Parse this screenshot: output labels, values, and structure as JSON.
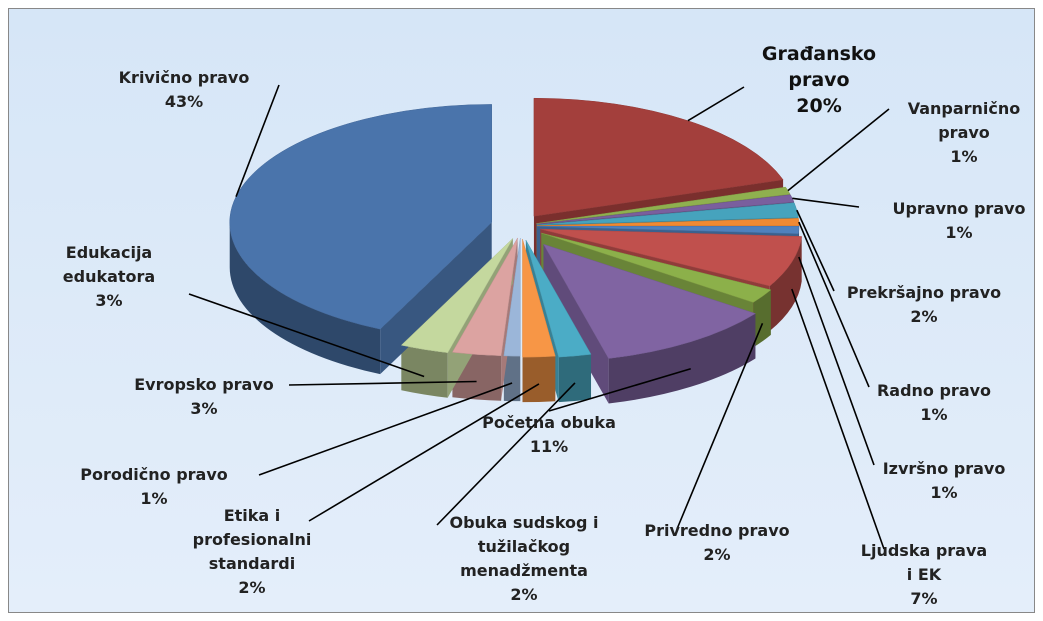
{
  "chart_data": {
    "type": "pie3d",
    "categories": [
      "Građansko pravo",
      "Vanparnično pravo",
      "Upravno pravo",
      "Prekršajno pravo",
      "Radno pravo",
      "Izvršno pravo",
      "Ljudska prava i EK",
      "Privredno pravo",
      "Početna obuka",
      "Obuka sudskog i tužilačkog menadžmenta",
      "Etika i profesionalni standardi",
      "Porodično pravo",
      "Evropsko pravo",
      "Edukacija edukatora",
      "Krivično pravo"
    ],
    "values": [
      20,
      1,
      1,
      2,
      1,
      1,
      7,
      2,
      11,
      2,
      2,
      1,
      3,
      3,
      43
    ],
    "value_labels": [
      "20%",
      "1%",
      "1%",
      "2%",
      "1%",
      "1%",
      "7%",
      "2%",
      "11%",
      "2%",
      "2%",
      "1%",
      "3%",
      "3%",
      "43%"
    ],
    "colors": [
      "#a33f3c",
      "#8fb04f",
      "#7a5f9e",
      "#46a3bd",
      "#f08a33",
      "#4f81bd",
      "#c0504d",
      "#8cb04a",
      "#8064a2",
      "#4bacc6",
      "#f79646",
      "#9bb6d9",
      "#dca3a1",
      "#c4d89e",
      "#4a74ab"
    ]
  }
}
